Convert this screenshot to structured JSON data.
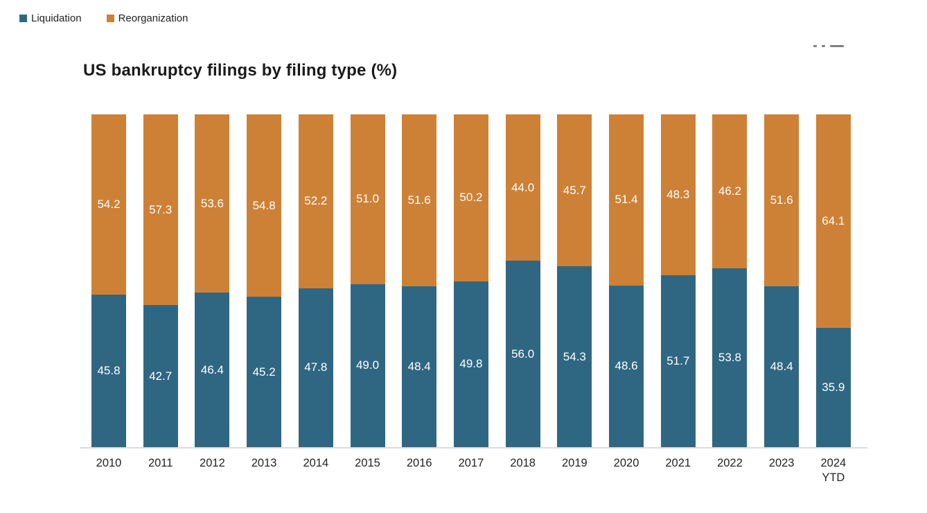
{
  "legend": {
    "items": [
      {
        "label": "Liquidation",
        "color": "#2F6783"
      },
      {
        "label": "Reorganization",
        "color": "#CD8136"
      }
    ]
  },
  "chart_data": {
    "type": "bar",
    "stacked": true,
    "title": "US bankruptcy filings by filing type (%)",
    "categories": [
      "2010",
      "2011",
      "2012",
      "2013",
      "2014",
      "2015",
      "2016",
      "2017",
      "2018",
      "2019",
      "2020",
      "2021",
      "2022",
      "2023",
      "2024 YTD"
    ],
    "series": [
      {
        "name": "Liquidation",
        "color": "#2F6783",
        "values": [
          45.8,
          42.7,
          46.4,
          45.2,
          47.8,
          49.0,
          48.4,
          49.8,
          56.0,
          54.3,
          48.6,
          51.7,
          53.8,
          48.4,
          35.9
        ]
      },
      {
        "name": "Reorganization",
        "color": "#CD8136",
        "values": [
          54.2,
          57.3,
          53.6,
          54.8,
          52.2,
          51.0,
          51.6,
          50.2,
          44.0,
          45.7,
          51.4,
          48.3,
          46.2,
          51.6,
          64.1
        ]
      }
    ],
    "ylim": [
      0,
      100
    ],
    "grid": false,
    "legend_position": "top-left",
    "value_labels": true,
    "value_label_format": "0.1f"
  }
}
